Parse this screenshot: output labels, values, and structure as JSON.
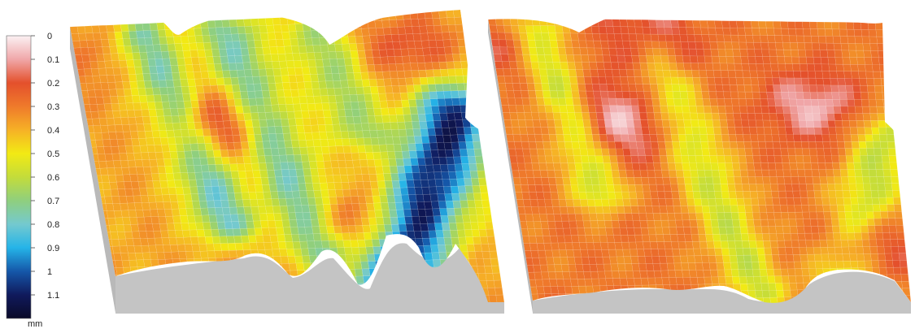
{
  "colorbar": {
    "ticks": [
      "0",
      "0.1",
      "0.2",
      "0.3",
      "0.4",
      "0.5",
      "0.6",
      "0.7",
      "0.8",
      "0.9",
      "1",
      "1.1"
    ],
    "unit": "mm",
    "range": [
      0,
      1.2
    ],
    "stops": [
      {
        "value": 0.0,
        "color": "#fbf1f3"
      },
      {
        "value": 0.1,
        "color": "#f0a7a9"
      },
      {
        "value": 0.2,
        "color": "#e4502c"
      },
      {
        "value": 0.3,
        "color": "#ef7a2b"
      },
      {
        "value": 0.4,
        "color": "#f6b126"
      },
      {
        "value": 0.5,
        "color": "#f2ea14"
      },
      {
        "value": 0.6,
        "color": "#c3dc3b"
      },
      {
        "value": 0.7,
        "color": "#8fcf7e"
      },
      {
        "value": 0.8,
        "color": "#74c9cf"
      },
      {
        "value": 0.9,
        "color": "#25b4e8"
      },
      {
        "value": 1.0,
        "color": "#1557a9"
      },
      {
        "value": 1.1,
        "color": "#101a5c"
      },
      {
        "value": 1.2,
        "color": "#0a0a28"
      }
    ]
  },
  "panels": [
    {
      "name": "surface-left",
      "side_color": "#b9b9b9",
      "base_color": "#c4c4c4"
    },
    {
      "name": "surface-right",
      "side_color": "#b9b9b9",
      "base_color": "#c4c4c4"
    }
  ]
}
